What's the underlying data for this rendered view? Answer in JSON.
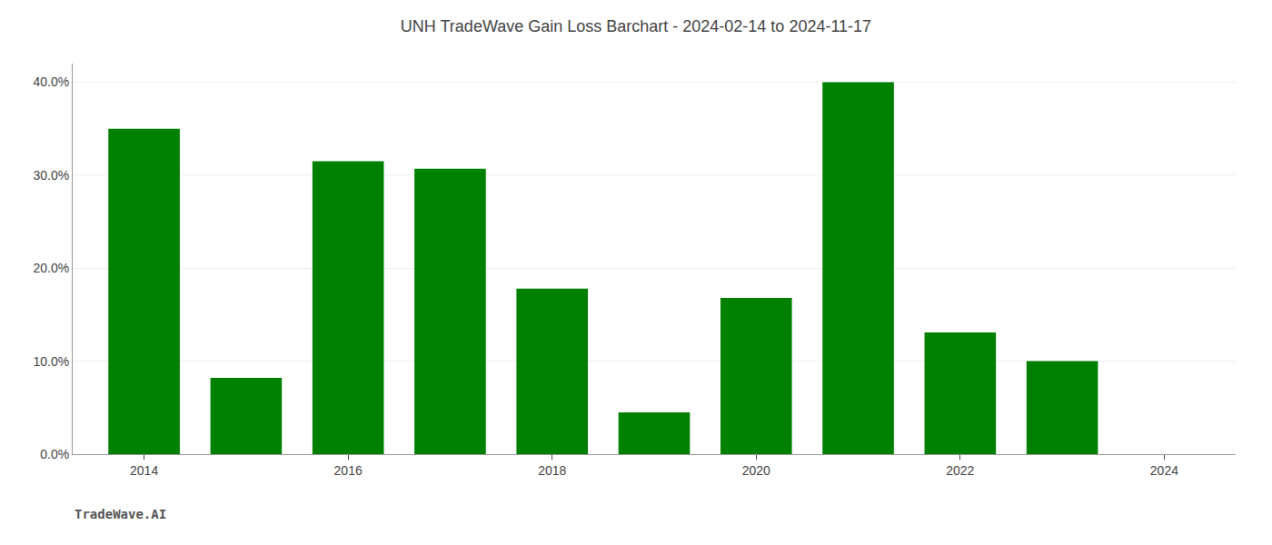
{
  "chart_data": {
    "type": "bar",
    "title": "UNH TradeWave Gain Loss Barchart - 2024-02-14 to 2024-11-17",
    "annotations": [
      "TradeWave.AI"
    ],
    "x": [
      2014,
      2015,
      2016,
      2017,
      2018,
      2019,
      2020,
      2021,
      2022,
      2023,
      2024
    ],
    "values": [
      0.35,
      0.082,
      0.315,
      0.307,
      0.178,
      0.045,
      0.168,
      0.4,
      0.131,
      0.1,
      0.0
    ],
    "color": "#008000",
    "xlim": [
      2013.3,
      2024.7
    ],
    "xticks": [
      2014,
      2016,
      2018,
      2020,
      2022,
      2024
    ],
    "ylim": [
      0.0,
      0.42
    ],
    "yticks": [
      {
        "value": 0.0,
        "label": "0.0%"
      },
      {
        "value": 0.1,
        "label": "10.0%"
      },
      {
        "value": 0.2,
        "label": "20.0%"
      },
      {
        "value": 0.3,
        "label": "30.0%"
      },
      {
        "value": 0.4,
        "label": "40.0%"
      }
    ],
    "grid": true
  }
}
